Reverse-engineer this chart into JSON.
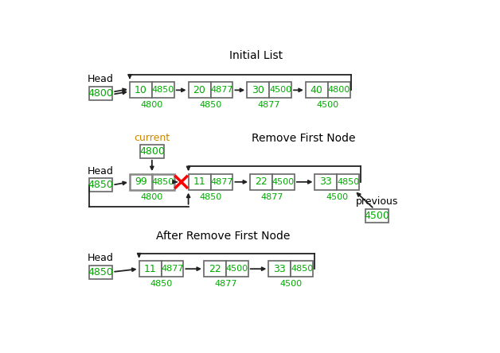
{
  "title1": "Initial List",
  "title2": "Remove First Node",
  "title3": "After Remove First Node",
  "bg_color": "#ffffff",
  "node_edge_color": "#666666",
  "text_color_green": "#00aa00",
  "text_color_black": "#000000",
  "arrow_color": "#222222",
  "cross_color": "#ff0000",
  "head_label_color": "#000000",
  "current_label_color": "#cc8800"
}
